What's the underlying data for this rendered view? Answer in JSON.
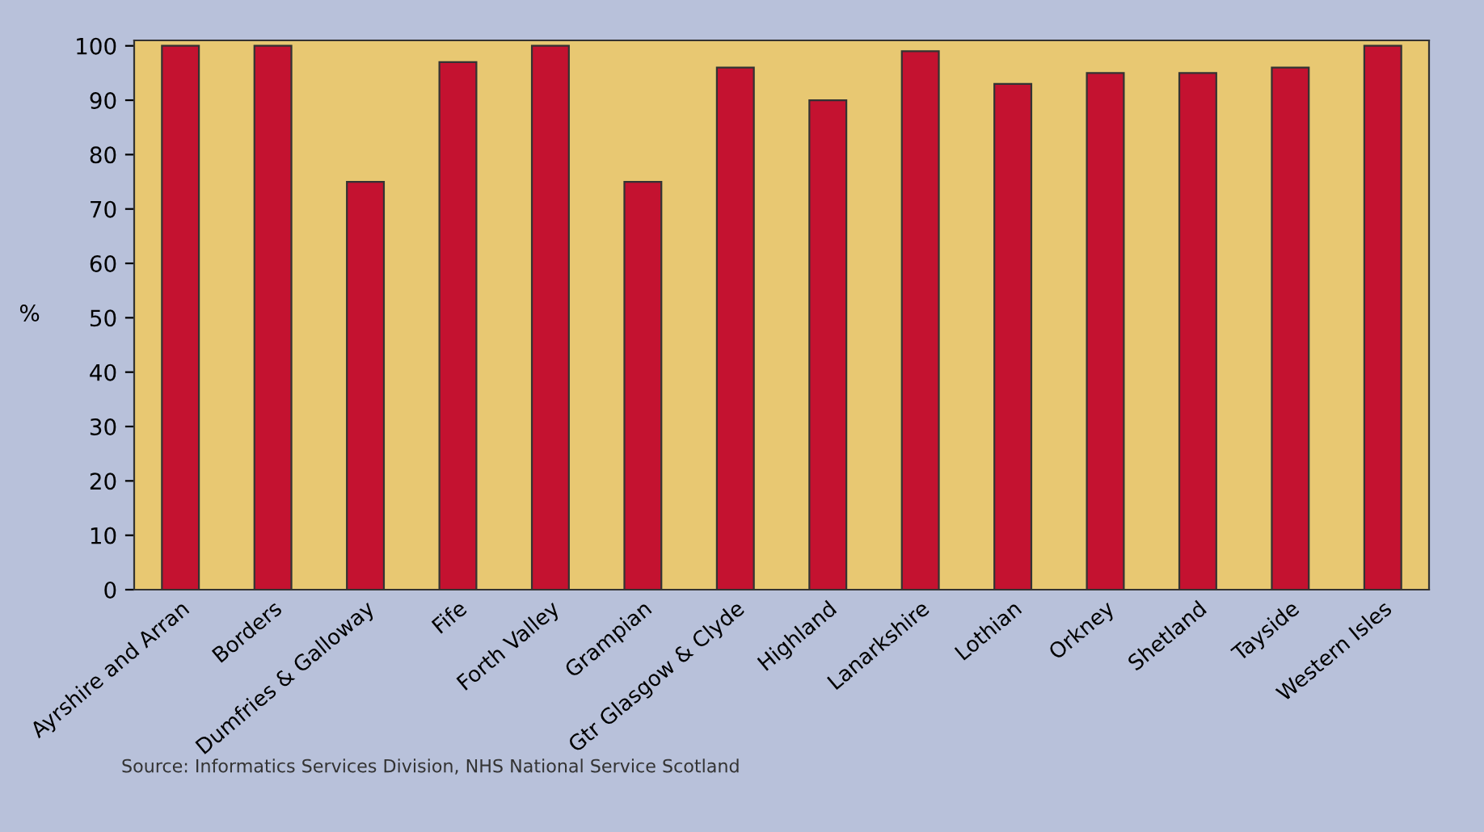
{
  "chart_data": {
    "type": "bar",
    "categories": [
      "Ayrshire and Arran",
      "Borders",
      "Dumfries & Galloway",
      "Fife",
      "Forth Valley",
      "Grampian",
      "Gtr Glasgow & Clyde",
      "Highland",
      "Lanarkshire",
      "Lothian",
      "Orkney",
      "Shetland",
      "Tayside",
      "Western Isles"
    ],
    "values": [
      100,
      100,
      75,
      97,
      100,
      75,
      96,
      90,
      99,
      93,
      95,
      95,
      96,
      100
    ],
    "color": "#c41230",
    "ylabel": "%",
    "ylim": [
      0,
      101
    ],
    "yticks": [
      0,
      10,
      20,
      30,
      40,
      50,
      60,
      70,
      80,
      90,
      100
    ],
    "grid": false,
    "annotations": [
      "Source: Informatics Services Division, NHS National Service Scotland"
    ]
  }
}
